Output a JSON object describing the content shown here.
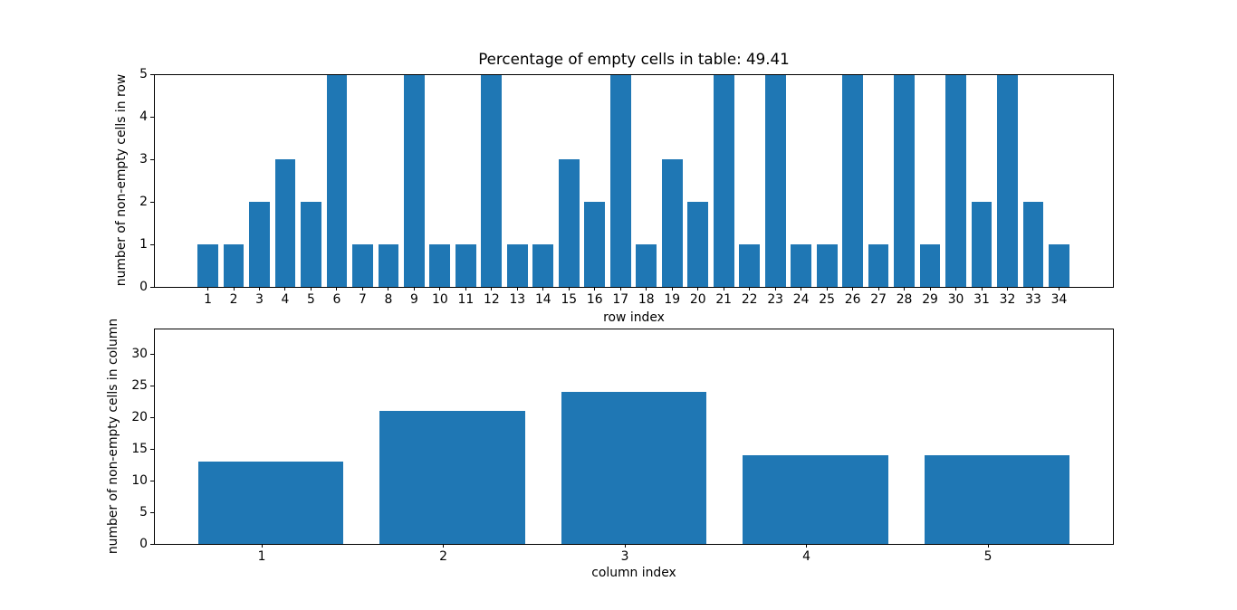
{
  "figure": {
    "background": "#ffffff",
    "text_color": "#000000"
  },
  "chart_data": [
    {
      "type": "bar",
      "title": "Percentage of empty cells in table: 49.41",
      "xlabel": "row index",
      "ylabel": "number of non-empty cells in row",
      "categories": [
        1,
        2,
        3,
        4,
        5,
        6,
        7,
        8,
        9,
        10,
        11,
        12,
        13,
        14,
        15,
        16,
        17,
        18,
        19,
        20,
        21,
        22,
        23,
        24,
        25,
        26,
        27,
        28,
        29,
        30,
        31,
        32,
        33,
        34
      ],
      "values": [
        1,
        1,
        2,
        3,
        2,
        5,
        1,
        1,
        5,
        1,
        1,
        5,
        1,
        1,
        3,
        2,
        5,
        1,
        3,
        2,
        5,
        1,
        5,
        1,
        1,
        5,
        1,
        5,
        1,
        5,
        2,
        5,
        2,
        1
      ],
      "ylim": [
        0,
        5
      ],
      "yticks": [
        0,
        1,
        2,
        3,
        4,
        5
      ],
      "xlim": [
        -1.09,
        36.09
      ],
      "bar_width_units": 0.8,
      "bar_x_offset": 0,
      "bar_color": "#1f77b4",
      "grid": false,
      "legend": null
    },
    {
      "type": "bar",
      "title": "",
      "xlabel": "column index",
      "ylabel": "number of non-empty cells in column",
      "categories": [
        1,
        2,
        3,
        4,
        5
      ],
      "values": [
        13,
        21,
        24,
        14,
        14
      ],
      "ylim": [
        0,
        34
      ],
      "yticks": [
        0,
        5,
        10,
        15,
        20,
        25,
        30
      ],
      "xlim": [
        0.406,
        5.688
      ],
      "bar_width_units": 0.8,
      "bar_x_offset": 0.05,
      "bar_color": "#1f77b4",
      "grid": false,
      "legend": null
    }
  ]
}
